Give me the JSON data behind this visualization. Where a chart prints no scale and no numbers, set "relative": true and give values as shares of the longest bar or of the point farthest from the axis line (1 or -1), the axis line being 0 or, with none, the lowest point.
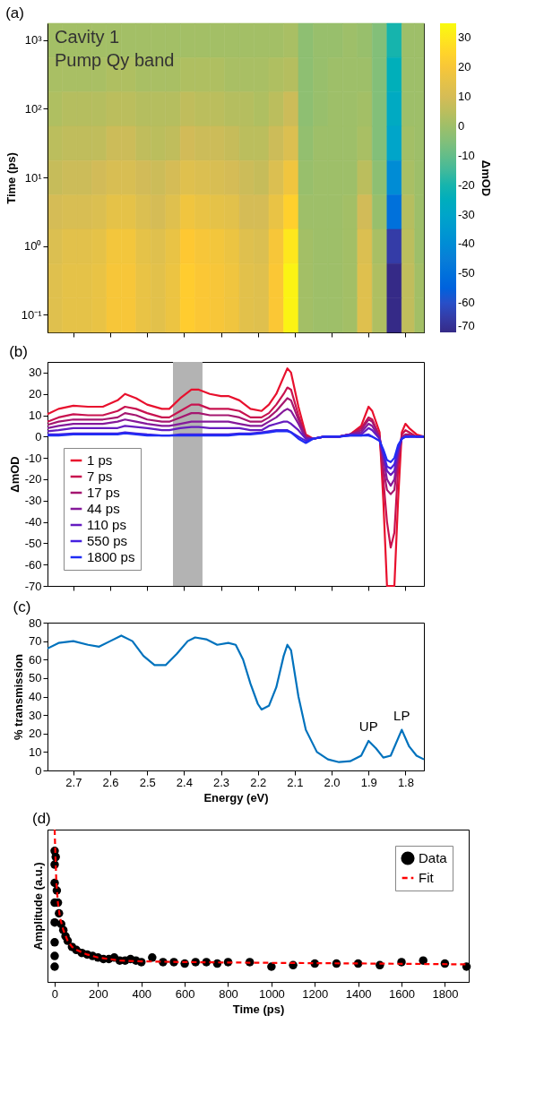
{
  "chart_data": [
    {
      "type": "heatmap",
      "title": "(a)",
      "ylabel": "Time (ps)",
      "clabel": "ΔmOD",
      "annotations": [
        "Cavity 1",
        "Pump Qy band"
      ],
      "x": [
        2.75,
        2.71,
        2.67,
        2.63,
        2.59,
        2.55,
        2.51,
        2.47,
        2.43,
        2.39,
        2.35,
        2.31,
        2.27,
        2.23,
        2.19,
        2.15,
        2.11,
        2.07,
        2.03,
        1.99,
        1.95,
        1.91,
        1.87,
        1.83,
        1.79,
        1.76
      ],
      "y_categories": [
        "10³",
        null,
        "10²",
        null,
        "10¹",
        null,
        "10⁰",
        null,
        "10⁻¹"
      ],
      "cells": [
        [
          1,
          1,
          1,
          1,
          1,
          1,
          1,
          1,
          1,
          1,
          1,
          1,
          1,
          1,
          1,
          1,
          2,
          -3,
          -1,
          -1,
          0,
          -1,
          -5,
          -20,
          0,
          0
        ],
        [
          2,
          2,
          2,
          2,
          3,
          3,
          2,
          2,
          2,
          3,
          3,
          3,
          2,
          2,
          2,
          3,
          4,
          -3,
          -1,
          0,
          0,
          0,
          -5,
          -24,
          0,
          0
        ],
        [
          3,
          4,
          4,
          4,
          5,
          5,
          4,
          4,
          4,
          6,
          5,
          5,
          4,
          4,
          3,
          5,
          8,
          -3,
          -1,
          0,
          0,
          1,
          -5,
          -27,
          0,
          0
        ],
        [
          5,
          6,
          6,
          6,
          8,
          8,
          6,
          5,
          6,
          9,
          8,
          8,
          7,
          5,
          5,
          8,
          12,
          -2,
          0,
          0,
          0,
          2,
          -5,
          -30,
          1,
          0
        ],
        [
          7,
          8,
          8,
          9,
          11,
          11,
          9,
          8,
          10,
          13,
          12,
          11,
          10,
          8,
          7,
          12,
          18,
          -1,
          0,
          0,
          0,
          5,
          -3,
          -40,
          2,
          0
        ],
        [
          10,
          11,
          11,
          12,
          15,
          15,
          12,
          10,
          13,
          18,
          16,
          15,
          14,
          10,
          10,
          16,
          24,
          0,
          0,
          0,
          1,
          9,
          -1,
          -50,
          4,
          0
        ],
        [
          12,
          14,
          14,
          15,
          19,
          19,
          15,
          13,
          16,
          22,
          20,
          19,
          17,
          13,
          12,
          20,
          30,
          1,
          0,
          0,
          1,
          12,
          2,
          -65,
          5,
          0
        ],
        [
          13,
          15,
          15,
          16,
          20,
          20,
          16,
          14,
          17,
          23,
          21,
          20,
          18,
          14,
          13,
          21,
          33,
          1,
          0,
          0,
          1,
          13,
          3,
          -70,
          6,
          1
        ],
        [
          13,
          15,
          15,
          16,
          20,
          20,
          16,
          14,
          17,
          23,
          21,
          20,
          18,
          14,
          13,
          21,
          33,
          1,
          0,
          0,
          1,
          13,
          3,
          -70,
          6,
          1
        ]
      ],
      "clim": [
        -70,
        35
      ],
      "cticks": [
        -70,
        -60,
        -50,
        -40,
        -30,
        -20,
        -10,
        0,
        10,
        20,
        30
      ],
      "xlim": [
        2.77,
        1.75
      ],
      "xticks": [
        2.7,
        2.6,
        2.5,
        2.4,
        2.3,
        2.2,
        2.1,
        2.0,
        1.9,
        1.8
      ],
      "tick_labels": "y",
      "grid": false
    },
    {
      "type": "line",
      "title": "(b)",
      "ylabel": "ΔmOD",
      "x": [
        2.77,
        2.74,
        2.7,
        2.66,
        2.62,
        2.58,
        2.56,
        2.53,
        2.5,
        2.46,
        2.44,
        2.41,
        2.38,
        2.36,
        2.33,
        2.3,
        2.28,
        2.25,
        2.22,
        2.19,
        2.17,
        2.15,
        2.13,
        2.12,
        2.11,
        2.09,
        2.07,
        2.05,
        2.02,
        1.98,
        1.95,
        1.92,
        1.9,
        1.89,
        1.87,
        1.86,
        1.85,
        1.84,
        1.83,
        1.82,
        1.81,
        1.8,
        1.79,
        1.77,
        1.75
      ],
      "series": [
        {
          "name": "1 ps",
          "color": "#e8102d",
          "values": [
            10.5,
            13,
            14.5,
            14,
            14,
            17,
            20,
            18,
            15,
            13,
            13,
            18,
            22,
            22,
            20,
            19,
            19,
            17,
            13,
            12,
            15,
            20,
            28,
            32,
            30,
            14,
            1,
            -1,
            0,
            0,
            1,
            5,
            14,
            12,
            2,
            -30,
            -70,
            -70,
            -70,
            -30,
            2,
            6,
            4,
            1,
            0
          ]
        },
        {
          "name": "7 ps",
          "color": "#c8124f",
          "values": [
            7,
            9,
            10.5,
            10,
            10,
            12,
            14,
            13,
            11,
            9,
            9,
            12,
            15,
            15,
            13,
            13,
            13,
            12,
            9,
            9,
            11,
            15,
            20,
            23,
            22,
            10,
            0,
            -1,
            0,
            0,
            1,
            4,
            9,
            8,
            0,
            -20,
            -40,
            -52,
            -45,
            -15,
            1,
            3,
            2,
            0,
            0
          ]
        },
        {
          "name": "17 ps",
          "color": "#a51670",
          "values": [
            5.5,
            7,
            8,
            8,
            8,
            9,
            11,
            10,
            8,
            7,
            7,
            9,
            11,
            11,
            10,
            10,
            10,
            9,
            7,
            7,
            9,
            12,
            16,
            18,
            17,
            8,
            0,
            -1,
            0,
            0,
            1,
            3,
            8,
            7,
            0,
            -15,
            -25,
            -27,
            -25,
            -10,
            0,
            1,
            1,
            0,
            0
          ]
        },
        {
          "name": "44 ps",
          "color": "#85199a",
          "values": [
            4,
            5,
            6,
            6,
            6,
            7,
            8,
            7,
            6,
            5,
            5,
            6,
            7,
            7,
            7,
            7,
            7,
            6,
            5,
            5,
            7,
            9,
            12,
            13,
            12,
            6,
            -1,
            -1,
            0,
            0,
            1,
            2,
            6,
            5,
            -1,
            -10,
            -20,
            -23,
            -20,
            -8,
            -1,
            0,
            0,
            null,
            null
          ]
        },
        {
          "name": "110 ps",
          "color": "#651cc0",
          "values": [
            2.5,
            3,
            4,
            4,
            4,
            4,
            5,
            4.5,
            4,
            3,
            3,
            4,
            4.5,
            4.5,
            4,
            4,
            4,
            4,
            3,
            3,
            5,
            6,
            7,
            7,
            6,
            3,
            -1,
            -1,
            0,
            0,
            1,
            1,
            4,
            3,
            -1,
            -8,
            -16,
            -18,
            -16,
            -6,
            -1,
            0,
            0,
            0,
            0
          ]
        },
        {
          "name": "550 ps",
          "color": "#4420e0",
          "values": [
            1,
            1,
            1.5,
            1.5,
            1.5,
            1.5,
            2,
            1.5,
            1,
            0.5,
            0.5,
            1,
            1,
            1,
            1,
            1,
            1,
            1.5,
            1.5,
            2,
            2.5,
            3,
            3,
            3,
            2,
            0,
            -2,
            -1,
            0,
            0,
            0.5,
            0.5,
            1,
            0,
            -2,
            -8,
            -14,
            -15,
            -13,
            -6,
            -1,
            0,
            0,
            0,
            0
          ]
        },
        {
          "name": "1800 ps",
          "color": "#1f2cf5",
          "values": [
            0.5,
            0.5,
            1,
            1,
            1,
            1,
            1.5,
            1,
            0.5,
            0.5,
            0.5,
            0.5,
            0.5,
            0.5,
            0.5,
            0.5,
            0.5,
            1,
            1,
            1.5,
            2,
            2.5,
            2.5,
            2.5,
            2,
            -1,
            -3,
            -1,
            0,
            0,
            0.5,
            0.5,
            0.5,
            0,
            -2,
            -6,
            -11,
            -12,
            -10,
            -4,
            -1,
            0,
            0,
            0,
            0
          ]
        }
      ],
      "bands": [
        {
          "axis": "x",
          "from": 2.43,
          "to": 2.35,
          "color": "#b3b3b3"
        }
      ],
      "xlim": [
        2.77,
        1.75
      ],
      "xticks": [
        2.7,
        2.6,
        2.5,
        2.4,
        2.3,
        2.2,
        2.1,
        2.0,
        1.9,
        1.8
      ],
      "ylim": [
        -70,
        35
      ],
      "yticks": [
        -70,
        -60,
        -50,
        -40,
        -30,
        -20,
        -10,
        0,
        10,
        20,
        30
      ],
      "legend": "bottom left",
      "tick_labels": "y",
      "grid": false
    },
    {
      "type": "line",
      "title": "(c)",
      "xlabel": "Energy (eV)",
      "ylabel": "% transmission",
      "x": [
        2.77,
        2.74,
        2.7,
        2.66,
        2.63,
        2.6,
        2.57,
        2.54,
        2.51,
        2.48,
        2.45,
        2.42,
        2.39,
        2.37,
        2.34,
        2.31,
        2.28,
        2.26,
        2.24,
        2.22,
        2.2,
        2.19,
        2.17,
        2.15,
        2.13,
        2.12,
        2.11,
        2.09,
        2.07,
        2.04,
        2.01,
        1.98,
        1.95,
        1.92,
        1.9,
        1.88,
        1.86,
        1.84,
        1.81,
        1.79,
        1.77,
        1.75
      ],
      "series": [
        {
          "color": "#0072bd",
          "values": [
            66,
            69,
            70,
            68,
            67,
            70,
            73,
            70,
            62,
            57,
            57,
            63,
            70,
            72,
            71,
            68,
            69,
            68,
            60,
            47,
            36,
            33,
            35,
            45,
            62,
            68,
            65,
            40,
            22,
            10,
            6,
            4.5,
            5,
            8,
            16,
            12,
            7,
            8,
            22,
            13,
            8,
            6
          ]
        }
      ],
      "annotations": [
        {
          "text": "UP",
          "x": 1.9,
          "y": 16
        },
        {
          "text": "LP",
          "x": 1.81,
          "y": 22
        }
      ],
      "xlim": [
        2.77,
        1.75
      ],
      "xticks": [
        2.7,
        2.6,
        2.5,
        2.4,
        2.3,
        2.2,
        2.1,
        {
          "value": 2,
          "label": "2.0"
        },
        1.9,
        1.8
      ],
      "ylim": [
        0,
        80
      ],
      "yticks": [
        0,
        10,
        20,
        30,
        40,
        50,
        60,
        70,
        80
      ],
      "grid": false
    },
    {
      "type": "scatter",
      "title": "(d)",
      "xlabel": "Time (ps)",
      "ylabel": "Amplitude (a.u.)",
      "relative": true,
      "series": [
        {
          "name": "Data",
          "color": "#000000",
          "marker": "circle",
          "x": [
            0,
            0,
            0,
            0,
            0,
            0,
            0,
            0,
            5,
            10,
            15,
            20,
            30,
            40,
            50,
            60,
            80,
            100,
            125,
            150,
            175,
            200,
            225,
            250,
            275,
            300,
            325,
            350,
            375,
            400,
            450,
            500,
            550,
            600,
            650,
            700,
            750,
            800,
            900,
            1000,
            1100,
            1200,
            1300,
            1400,
            1500,
            1600,
            1700,
            1800,
            1900
          ],
          "values": [
            0.1,
            0.17,
            0.26,
            0.39,
            0.52,
            0.65,
            0.77,
            0.86,
            0.82,
            0.6,
            0.52,
            0.45,
            0.38,
            0.34,
            0.3,
            0.27,
            0.23,
            0.21,
            0.19,
            0.18,
            0.17,
            0.16,
            0.15,
            0.15,
            0.16,
            0.14,
            0.14,
            0.15,
            0.14,
            0.13,
            0.16,
            0.13,
            0.13,
            0.12,
            0.13,
            0.13,
            0.12,
            0.13,
            0.13,
            0.1,
            0.11,
            0.12,
            0.12,
            0.12,
            0.11,
            0.13,
            0.14,
            0.12,
            0.1
          ]
        },
        {
          "name": "Fit",
          "type": "line",
          "color": "#ff0000",
          "line_style": "dashed",
          "x": [
            0,
            3,
            8,
            15,
            25,
            40,
            60,
            80,
            100,
            150,
            200,
            300,
            400,
            600,
            1000,
            1500,
            1900
          ],
          "values": [
            1,
            0.85,
            0.65,
            0.52,
            0.42,
            0.34,
            0.27,
            0.23,
            0.21,
            0.18,
            0.16,
            0.14,
            0.135,
            0.13,
            0.125,
            0.12,
            0.115
          ]
        }
      ],
      "xlim": [
        -33,
        1910
      ],
      "xticks": [
        0,
        200,
        400,
        600,
        800,
        1000,
        1200,
        1400,
        1600,
        1800
      ],
      "legend": "top right",
      "grid": false
    }
  ]
}
